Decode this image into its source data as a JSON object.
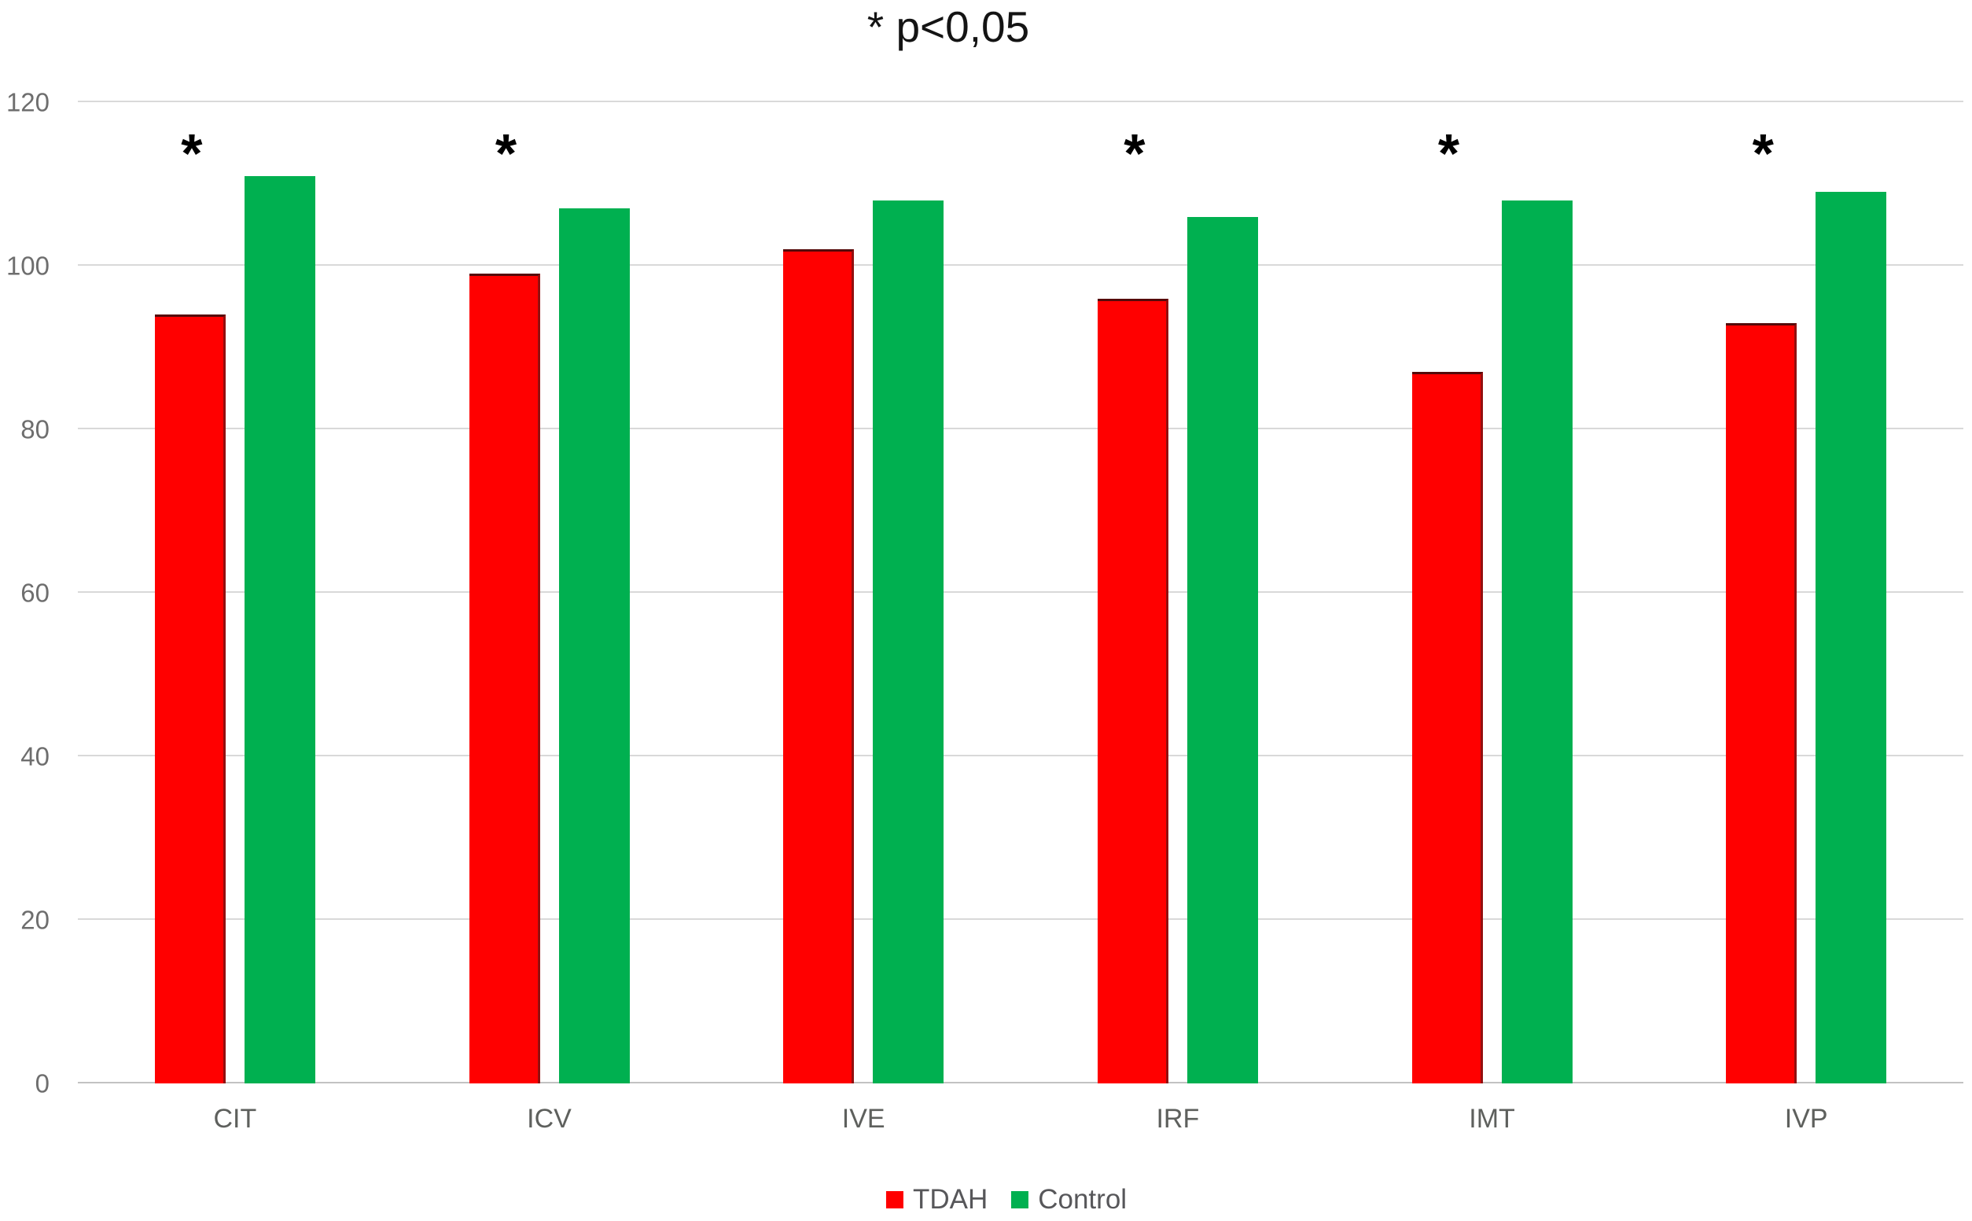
{
  "chart_data": {
    "type": "bar",
    "title": "* p<0,05",
    "categories": [
      "CIT",
      "ICV",
      "IVE",
      "IRF",
      "IMT",
      "IVP"
    ],
    "series": [
      {
        "name": "TDAH",
        "color": "#ff0000",
        "values": [
          94,
          99,
          102,
          96,
          87,
          93
        ]
      },
      {
        "name": "Control",
        "color": "#00b050",
        "values": [
          111,
          107,
          108,
          106,
          108,
          109
        ]
      }
    ],
    "significance_marker": "*",
    "significant_categories": [
      true,
      true,
      false,
      true,
      true,
      true
    ],
    "y_ticks": [
      0,
      20,
      40,
      60,
      80,
      100,
      120
    ],
    "ylim": [
      0,
      120
    ],
    "grid": "horizontal",
    "legend_position": "bottom"
  },
  "colors": {
    "grid": "#d9d9d9",
    "baseline": "#c2c2c2",
    "y_tick_label": "#6e6e6e",
    "x_tick_label": "#5e605d",
    "title_text": "#141414",
    "legend_text": "#57575a",
    "red_bar_edge": "#930f0f"
  }
}
